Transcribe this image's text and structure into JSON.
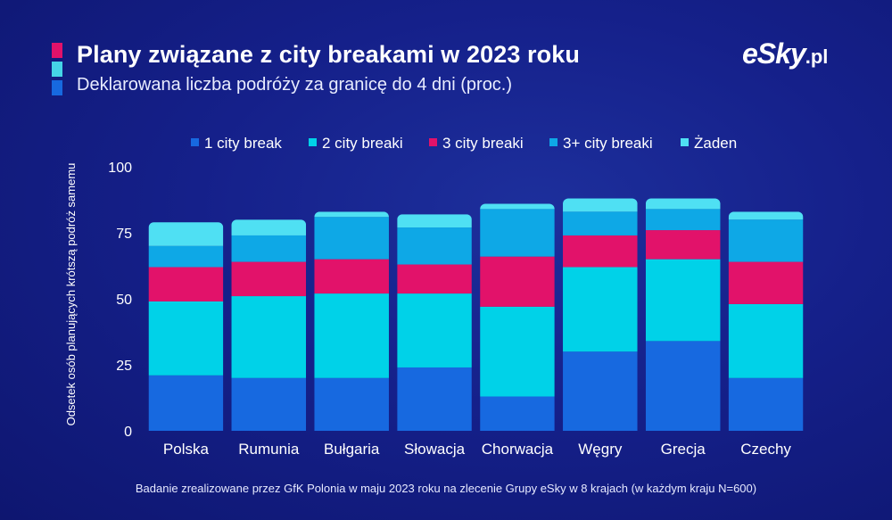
{
  "header": {
    "title": "Plany związane z city breakami w 2023 roku",
    "subtitle": "Deklarowana liczba podróży za granicę do 4 dni (proc.)",
    "accent_colors": [
      "#e2126a",
      "#45d4e6",
      "#1769e0"
    ]
  },
  "logo": {
    "brand": "eSky",
    "tld": ".pl"
  },
  "footnote": "Badanie zrealizowane przez GfK Polonia w maju 2023 roku na zlecenie Grupy eSky w 8 krajach (w każdym kraju N=600)",
  "chart_data": {
    "type": "bar",
    "stacked": true,
    "categories": [
      "Polska",
      "Rumunia",
      "Bułgaria",
      "Słowacja",
      "Chorwacja",
      "Węgry",
      "Grecja",
      "Czechy"
    ],
    "series": [
      {
        "name": "1 city break",
        "color": "#1769e0",
        "values": [
          21,
          20,
          20,
          24,
          13,
          30,
          34,
          20
        ]
      },
      {
        "name": "2 city breaki",
        "color": "#00d2e8",
        "values": [
          28,
          31,
          32,
          28,
          34,
          32,
          31,
          28
        ]
      },
      {
        "name": "3 city breaki",
        "color": "#e2126a",
        "values": [
          13,
          13,
          13,
          11,
          19,
          12,
          11,
          16
        ]
      },
      {
        "name": "3+ city breaki",
        "color": "#0ea8e6",
        "values": [
          8,
          10,
          16,
          14,
          18,
          9,
          8,
          16
        ]
      },
      {
        "name": "Żaden",
        "color": "#4fe0f3",
        "values": [
          9,
          6,
          2,
          5,
          2,
          5,
          4,
          3
        ]
      }
    ],
    "ylabel": "Odsetek osób planujących krótszą podróż samemu",
    "ylim": [
      0,
      100
    ],
    "yticks": [
      0,
      25,
      50,
      75,
      100
    ],
    "grid": false,
    "legend": "top"
  }
}
